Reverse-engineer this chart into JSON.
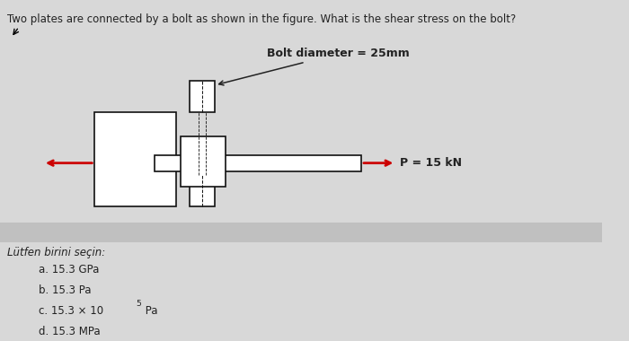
{
  "title": "Two plates are connected by a bolt as shown in the figure. What is the shear stress on the bolt?",
  "bolt_label": "Bolt diameter = 25mm",
  "force_label": "P = 15 kN",
  "question_label": "Lütfen birini seçin:",
  "options": [
    "a. 15.3 GPa",
    "b. 15.3 Pa",
    "c. 15.3 × 10⁵ Pa",
    "d. 15.3 MPa"
  ],
  "bg_color": "#d8d8d8",
  "text_color": "#222222",
  "plate_color": "#ffffff",
  "plate_edge": "#111111",
  "arrow_color": "#cc0000",
  "font_size_title": 8.5,
  "font_size_options": 8.5,
  "font_size_labels": 9
}
